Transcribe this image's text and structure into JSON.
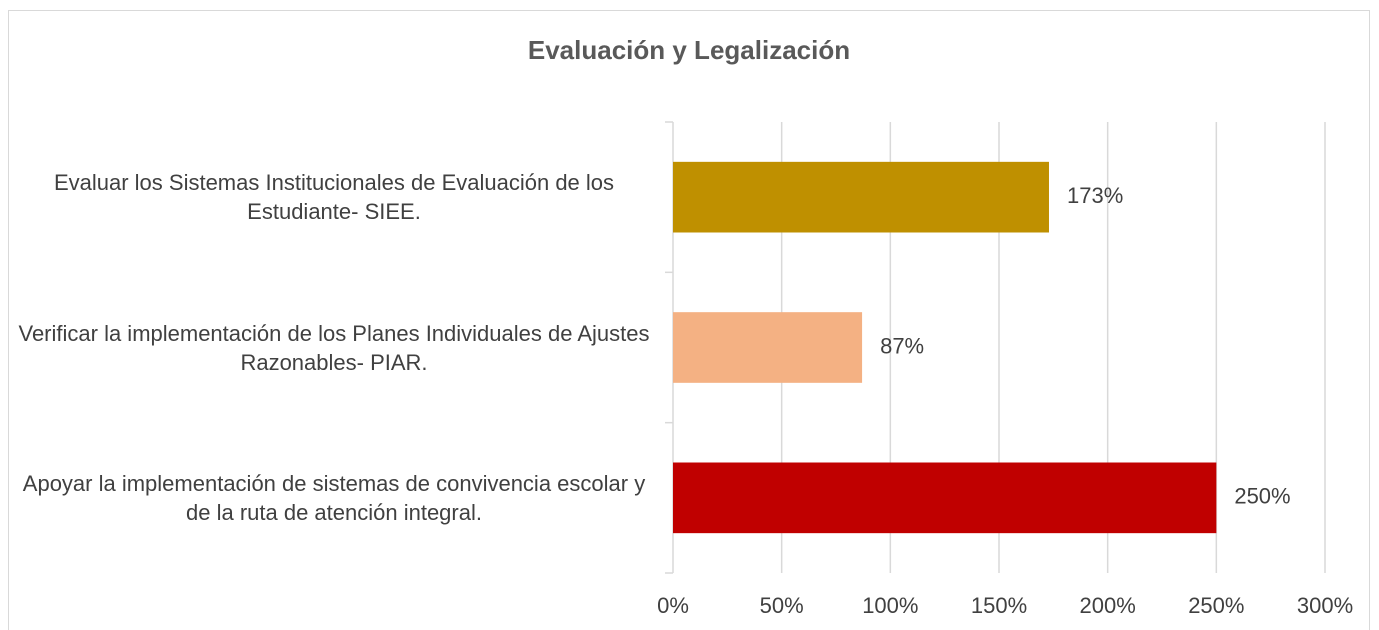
{
  "chart_data": {
    "type": "hbar",
    "title": "Evaluación y Legalización",
    "categories": [
      "Evaluar los Sistemas Institucionales de Evaluación de los Estudiante- SIEE.",
      "Verificar la implementación de los Planes Individuales de Ajustes Razonables- PIAR.",
      "Apoyar la implementación de  sistemas de convivencia escolar y de la ruta de atención integral."
    ],
    "values": [
      173,
      87,
      250
    ],
    "value_labels": [
      "173%",
      "87%",
      "250%"
    ],
    "colors": [
      "#bf9000",
      "#f4b183",
      "#c00000"
    ],
    "xlim": [
      0,
      300
    ],
    "xticks": [
      {
        "value": 0,
        "label": "0%"
      },
      {
        "value": 50,
        "label": "50%"
      },
      {
        "value": 100,
        "label": "100%"
      },
      {
        "value": 150,
        "label": "150%"
      },
      {
        "value": 200,
        "label": "200%"
      },
      {
        "value": 250,
        "label": "250%"
      },
      {
        "value": 300,
        "label": "300%"
      }
    ],
    "grid": true
  }
}
